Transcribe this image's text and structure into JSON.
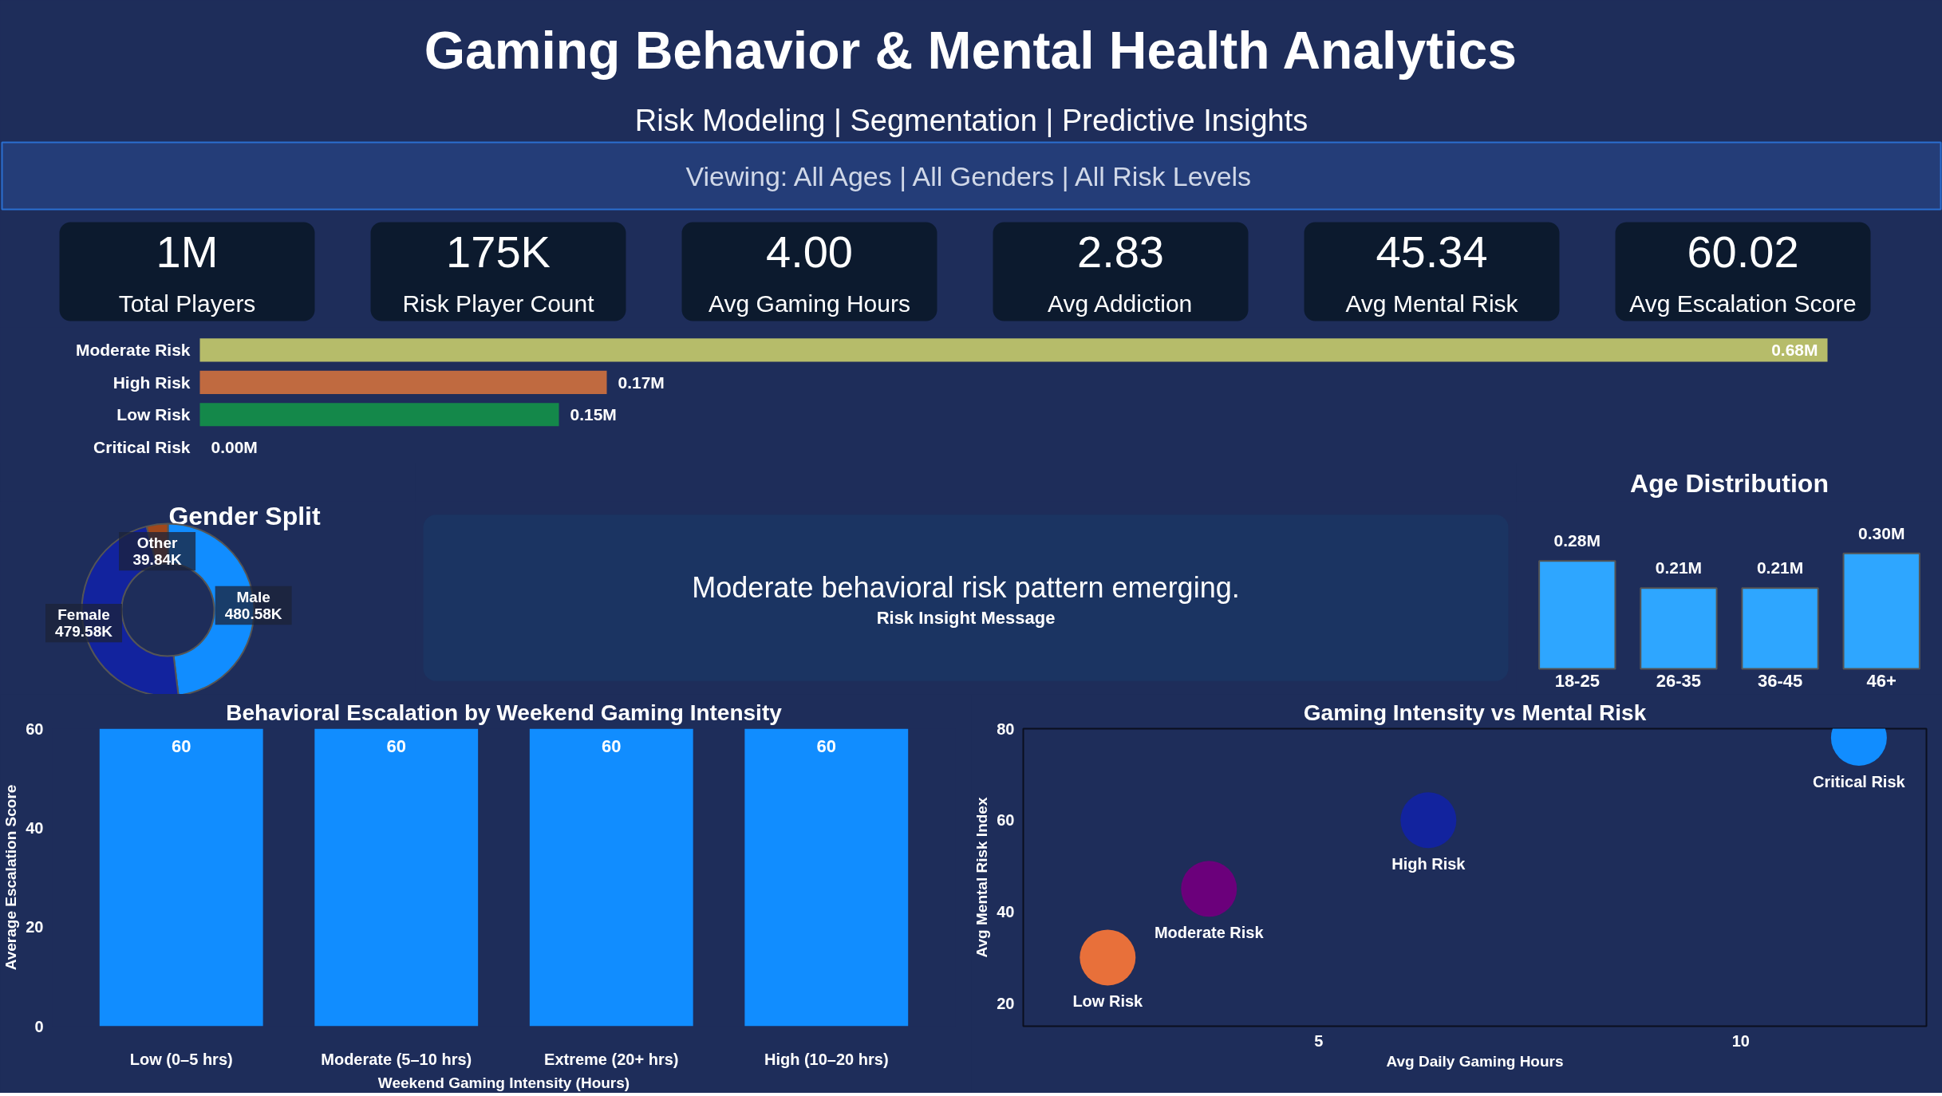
{
  "chart_data": [
    {
      "type": "other",
      "title": "Gaming Behavior & Mental Health Analytics",
      "subtitle": "Risk Modeling | Segmentation | Predictive Insights",
      "annotations": [
        "Viewing: All Ages | All Genders | All Risk Levels",
        "1M",
        "Total Players",
        "175K",
        "Risk Player Count",
        "4.00",
        "Avg Gaming Hours",
        "2.83",
        "Avg Addiction",
        "45.34",
        "Avg Mental Risk",
        "60.02",
        "Avg Escalation Score"
      ]
    },
    {
      "type": "bar",
      "orientation": "horizontal",
      "categories": [
        "Moderate Risk",
        "High Risk",
        "Low Risk",
        "Critical Risk"
      ],
      "values": [
        0.68,
        0.17,
        0.15,
        0.0
      ],
      "colors": [
        "#b6bc6a",
        "#c06a40",
        "#14884a",
        "#e04040"
      ],
      "value_labels": [
        "0.68M",
        "0.17M",
        "0.15M",
        "0.00M"
      ]
    },
    {
      "type": "donut",
      "title": "Gender Split",
      "categories": [
        "Male",
        "Female",
        "Other"
      ],
      "values": [
        480.58,
        479.58,
        39.84
      ],
      "colors": [
        "#118dff",
        "#12239e",
        "#a0481c"
      ],
      "value_labels": [
        "480.58K",
        "479.58K",
        "39.84K"
      ]
    },
    {
      "type": "other",
      "title": "Moderate behavioral risk pattern emerging.",
      "annotations": [
        "Risk Insight Message"
      ]
    },
    {
      "type": "bar",
      "title": "Age Distribution",
      "categories": [
        "18-25",
        "26-35",
        "36-45",
        "46+"
      ],
      "values": [
        0.28,
        0.21,
        0.21,
        0.3
      ],
      "color": "#2ea6ff",
      "value_labels": [
        "0.28M",
        "0.21M",
        "0.21M",
        "0.30M"
      ]
    },
    {
      "type": "bar",
      "title": "Behavioral Escalation by Weekend Gaming Intensity",
      "xlabel": "Weekend Gaming Intensity (Hours)",
      "ylabel": "Average Escalation Score",
      "categories": [
        "Low (0–5 hrs)",
        "Moderate (5–10 hrs)",
        "Extreme (20+ hrs)",
        "High (10–20 hrs)"
      ],
      "values": [
        60,
        60,
        60,
        60
      ],
      "color": "#118dff",
      "ylim": [
        0,
        60
      ],
      "yticks": [
        0,
        20,
        40,
        60
      ],
      "data_labels": true
    },
    {
      "type": "scatter",
      "title": "Gaming Intensity vs Mental Risk",
      "xlabel": "Avg Daily Gaming Hours",
      "ylabel": "Avg Mental Risk Index",
      "xlim": [
        1.5,
        12.2
      ],
      "ylim": [
        15,
        80
      ],
      "xticks": [
        5,
        10
      ],
      "yticks": [
        20,
        40,
        60,
        80
      ],
      "marker": "circle",
      "series": [
        {
          "name": "Low Risk",
          "color": "#e8703a",
          "x": [
            2.5
          ],
          "values": [
            30
          ]
        },
        {
          "name": "Moderate Risk",
          "color": "#6b007b",
          "x": [
            3.7
          ],
          "values": [
            45
          ]
        },
        {
          "name": "High Risk",
          "color": "#12239e",
          "x": [
            6.3
          ],
          "values": [
            60
          ]
        },
        {
          "name": "Critical Risk",
          "color": "#118dff",
          "x": [
            11.4
          ],
          "values": [
            78
          ]
        }
      ]
    }
  ]
}
